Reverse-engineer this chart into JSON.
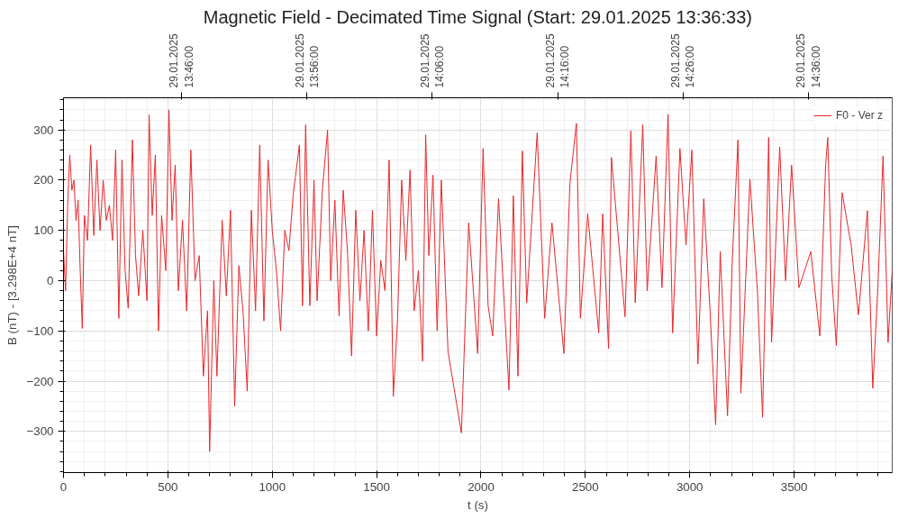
{
  "chart_data": {
    "type": "line",
    "title": "Magnetic Field - Decimated Time Signal (Start: 29.01.2025 13:36:33)",
    "xlabel": "t (s)",
    "ylabel": "B (nT) - [3.298E+4 nT]",
    "xlim": [
      0,
      3970
    ],
    "ylim": [
      -382,
      364
    ],
    "xticks": [
      0,
      500,
      1000,
      1500,
      2000,
      2500,
      3000,
      3500
    ],
    "yticks": [
      -300,
      -200,
      -100,
      0,
      100,
      200,
      300
    ],
    "x2lim": [
      "2025-01-29T13:36:33",
      "2025-01-29T14:42:43"
    ],
    "x2ticks": [
      {
        "value": "2025-01-29T13:46:00",
        "label": "29.01.2025\n13:46:00"
      },
      {
        "value": "2025-01-29T13:56:00",
        "label": "29.01.2025\n13:56:00"
      },
      {
        "value": "2025-01-29T14:06:00",
        "label": "29.01.2025\n14:06:00"
      },
      {
        "value": "2025-01-29T14:16:00",
        "label": "29.01.2025\n14:16:00"
      },
      {
        "value": "2025-01-29T14:26:00",
        "label": "29.01.2025\n14:26:00"
      },
      {
        "value": "2025-01-29T14:36:00",
        "label": "29.01.2025\n14:36:00"
      }
    ],
    "grid": true,
    "legend": "top right",
    "line_style": "solid",
    "series": [
      {
        "name": "F0 - Ver z",
        "color": "#e8262b",
        "x": [
          0,
          10,
          20,
          30,
          40,
          50,
          60,
          70,
          80,
          90,
          100,
          115,
          130,
          145,
          160,
          175,
          190,
          205,
          220,
          235,
          250,
          265,
          280,
          295,
          310,
          330,
          345,
          360,
          380,
          400,
          410,
          425,
          440,
          455,
          470,
          490,
          505,
          520,
          535,
          550,
          570,
          590,
          610,
          630,
          650,
          670,
          690,
          700,
          720,
          735,
          760,
          780,
          800,
          820,
          840,
          860,
          880,
          900,
          920,
          940,
          960,
          980,
          1000,
          1020,
          1040,
          1060,
          1080,
          1100,
          1130,
          1145,
          1160,
          1180,
          1200,
          1215,
          1240,
          1265,
          1280,
          1300,
          1320,
          1340,
          1360,
          1380,
          1400,
          1420,
          1440,
          1460,
          1480,
          1500,
          1520,
          1540,
          1560,
          1580,
          1600,
          1620,
          1640,
          1660,
          1680,
          1700,
          1720,
          1735,
          1750,
          1770,
          1790,
          1810,
          1842,
          1906,
          1941,
          1984,
          2010,
          2034,
          2056,
          2084,
          2134,
          2155,
          2177,
          2198,
          2219,
          2269,
          2305,
          2340,
          2397,
          2426,
          2457,
          2476,
          2511,
          2564,
          2583,
          2611,
          2625,
          2690,
          2718,
          2739,
          2775,
          2796,
          2839,
          2867,
          2896,
          2918,
          2953,
          2982,
          3010,
          3039,
          3067,
          3096,
          3124,
          3146,
          3181,
          3203,
          3231,
          3245,
          3288,
          3324,
          3349,
          3378,
          3392,
          3431,
          3459,
          3488,
          3523,
          3580,
          3623,
          3651,
          3661,
          3680,
          3702,
          3730,
          3773,
          3808,
          3851,
          3877,
          3901,
          3926,
          3950,
          3970
        ],
        "values": [
          60,
          -20,
          150,
          250,
          180,
          200,
          120,
          160,
          20,
          -95,
          130,
          80,
          270,
          90,
          240,
          100,
          200,
          120,
          150,
          80,
          260,
          -75,
          240,
          20,
          -55,
          280,
          50,
          -30,
          100,
          -40,
          330,
          130,
          250,
          -100,
          130,
          20,
          340,
          120,
          230,
          -20,
          120,
          -60,
          260,
          0,
          50,
          -190,
          -60,
          -340,
          0,
          -190,
          120,
          -30,
          140,
          -250,
          30,
          -60,
          -220,
          140,
          -60,
          270,
          -80,
          240,
          100,
          20,
          -100,
          100,
          60,
          170,
          270,
          -50,
          310,
          -50,
          200,
          -40,
          180,
          300,
          0,
          160,
          -70,
          180,
          60,
          -150,
          140,
          -40,
          100,
          -100,
          140,
          -110,
          40,
          -20,
          240,
          -230,
          -80,
          200,
          40,
          220,
          -60,
          20,
          -160,
          290,
          50,
          210,
          -100,
          200,
          -141,
          -303,
          115,
          -145,
          263,
          -50,
          -110,
          163,
          -218,
          169,
          -190,
          258,
          -44,
          294,
          -75,
          115,
          -145,
          194,
          313,
          -75,
          133,
          -104,
          133,
          -135,
          245,
          -72,
          298,
          -44,
          310,
          -20,
          248,
          -14,
          331,
          -104,
          263,
          71,
          260,
          -166,
          163,
          -50,
          -287,
          58,
          -269,
          33,
          280,
          -224,
          202,
          -20,
          -272,
          285,
          -123,
          266,
          0,
          230,
          -14,
          58,
          -110,
          230,
          285,
          11,
          -129,
          175,
          71,
          -68,
          139,
          -214,
          -14,
          248,
          -123,
          20
        ]
      }
    ]
  }
}
